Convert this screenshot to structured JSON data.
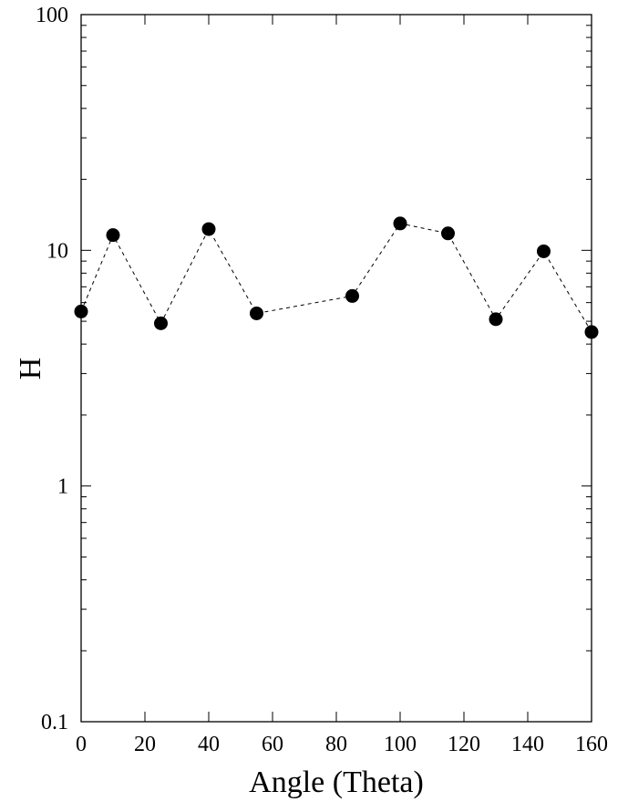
{
  "chart_data": {
    "type": "line",
    "title": "",
    "xlabel": "Angle (Theta)",
    "ylabel": "H",
    "xlim": [
      0,
      160
    ],
    "ylim": [
      0.1,
      100
    ],
    "yscale": "log",
    "grid": false,
    "legend": "none",
    "line_style": "dashed",
    "marker": "filled-circle",
    "colors": {
      "series": "#000000",
      "axis": "#000000",
      "background": "#ffffff"
    },
    "x_ticks": [
      "0",
      "20",
      "40",
      "60",
      "80",
      "100",
      "120",
      "140",
      "160"
    ],
    "y_ticks": [
      "0.1",
      "1",
      "10",
      "100"
    ],
    "series": [
      {
        "x": [
          0,
          10,
          25,
          40,
          55,
          85,
          100,
          115,
          130,
          145,
          160
        ],
        "y": [
          5.5,
          11.6,
          4.9,
          12.3,
          5.4,
          6.4,
          13.0,
          11.8,
          5.1,
          9.9,
          4.5
        ]
      }
    ]
  }
}
